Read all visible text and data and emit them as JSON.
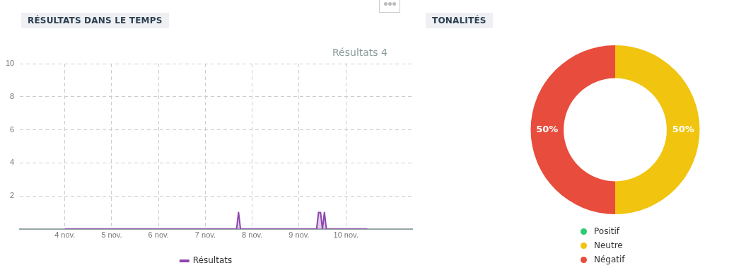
{
  "chart_data": [
    {
      "type": "area",
      "title": "RÉSULTATS DANS LE TEMPS",
      "x": [
        "--11-04T00:00",
        "--11-07T16:00",
        "--11-07T17:00",
        "--11-07T18:00",
        "--11-09T09:00",
        "--11-09T10:00",
        "--11-09T11:00",
        "--11-09T12:00",
        "--11-09T13:00",
        "--11-09T14:00",
        "--11-10T11:00"
      ],
      "series": [
        {
          "name": "Résultats",
          "color": "#8e44ad",
          "values": [
            0,
            0,
            1,
            0,
            0,
            1,
            1,
            0,
            1,
            0,
            0
          ]
        }
      ],
      "xlim": [
        "--11-03T01:00",
        "--11-11T10:00"
      ],
      "xticks": [
        {
          "value": "--11-04",
          "label": "4 nov."
        },
        {
          "value": "--11-05",
          "label": "5 nov."
        },
        {
          "value": "--11-06",
          "label": "6 nov."
        },
        {
          "value": "--11-07",
          "label": "7 nov."
        },
        {
          "value": "--11-08",
          "label": "8 nov."
        },
        {
          "value": "--11-09",
          "label": "9 nov."
        },
        {
          "value": "--11-10",
          "label": "10 nov."
        }
      ],
      "ylim": [
        0,
        10
      ],
      "yticks": [
        2,
        4,
        6,
        8,
        10
      ],
      "grid": true,
      "legend": "bottom",
      "marker": "none",
      "line_style": "solid",
      "annotations": [
        "Résultats 4"
      ]
    },
    {
      "type": "donut",
      "title": "TONALITÉS",
      "categories": [
        "Positif",
        "Neutre",
        "Négatif"
      ],
      "values": [
        0,
        50,
        50
      ],
      "colors": [
        "#2ecc71",
        "#f1c40f",
        "#e74c3c"
      ],
      "value_labels": [
        null,
        "50%",
        "50%"
      ],
      "legend": "bottom"
    }
  ]
}
